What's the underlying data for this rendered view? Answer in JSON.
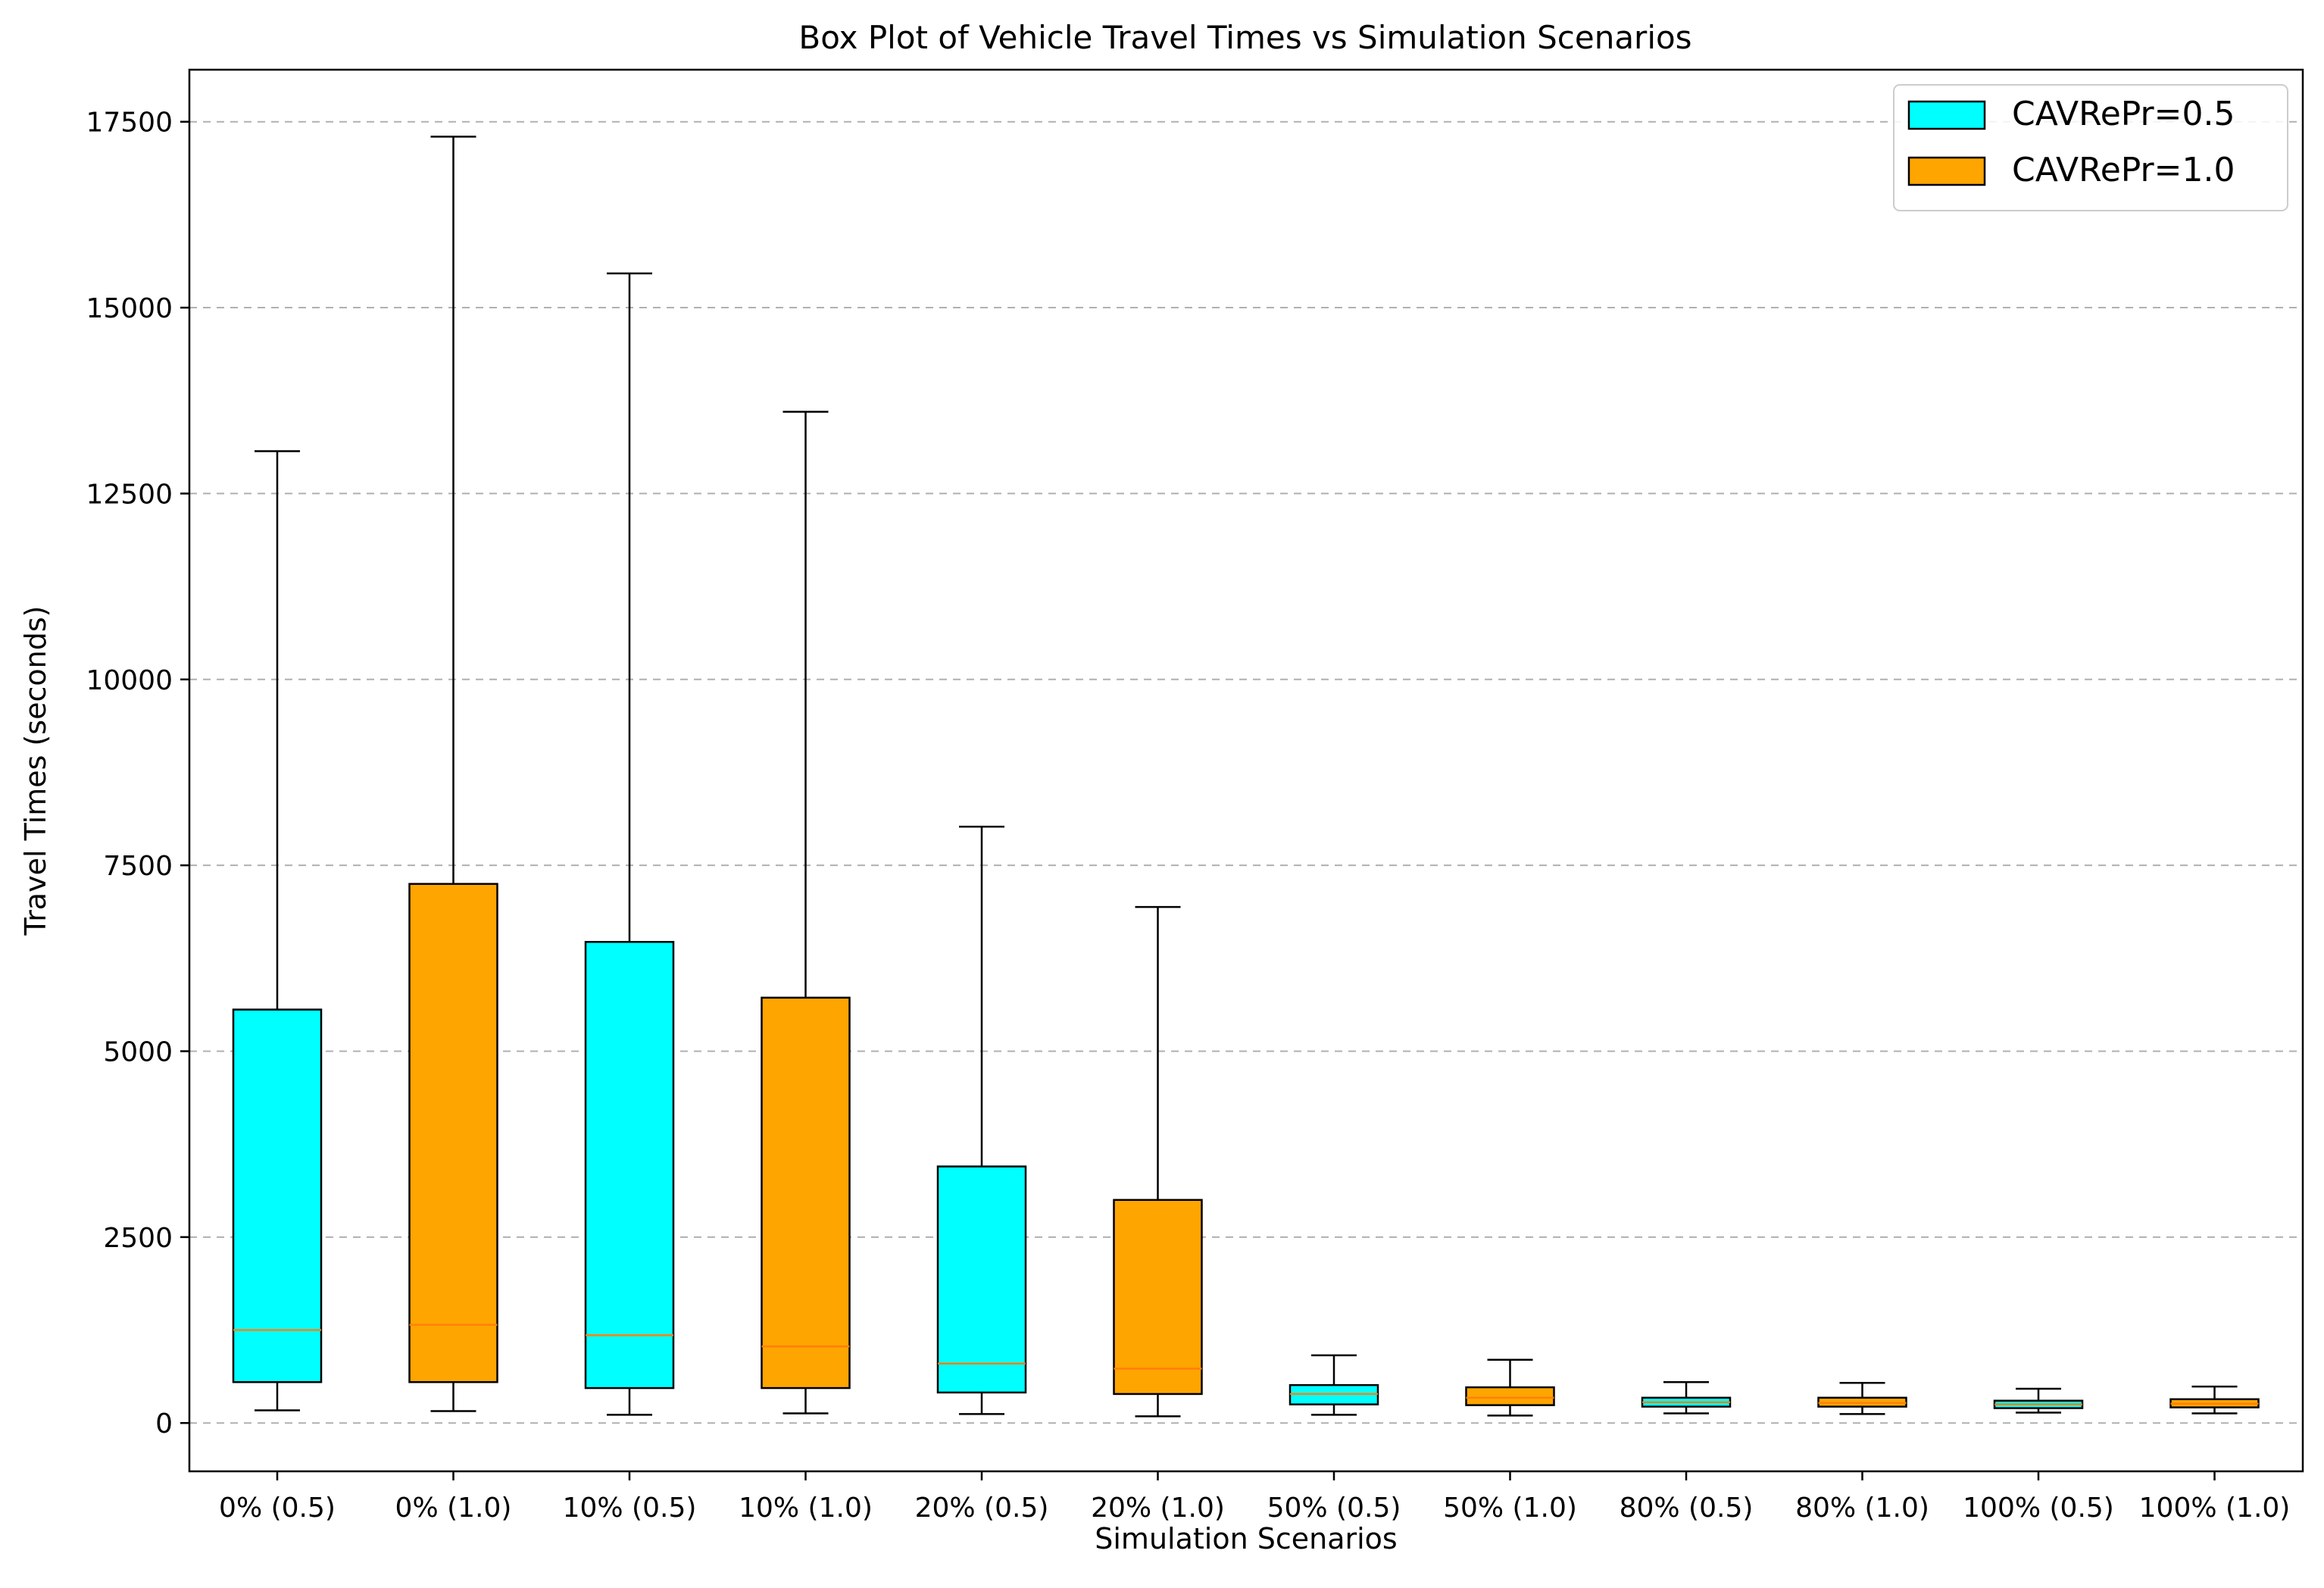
{
  "chart_data": {
    "type": "box",
    "title": "Box Plot of Vehicle Travel Times vs Simulation Scenarios",
    "xlabel": "Simulation Scenarios",
    "ylabel": "Travel Times (seconds)",
    "ylim": [
      -650,
      18200
    ],
    "yticks": [
      0,
      2500,
      5000,
      7500,
      10000,
      12500,
      15000,
      17500
    ],
    "grid": "horizontal dashed",
    "legend_position": "top-right",
    "colors": {
      "CAVRePr=0.5": "#00ffff",
      "CAVRePr=1.0": "#ffa500",
      "median": "#ff7f0e",
      "edge": "#000000"
    },
    "legend": [
      {
        "label": "CAVRePr=0.5",
        "color": "#00ffff"
      },
      {
        "label": "CAVRePr=1.0",
        "color": "#ffa500"
      }
    ],
    "categories": [
      "0% (0.5)",
      "0% (1.0)",
      "10% (0.5)",
      "10% (1.0)",
      "20% (0.5)",
      "20% (1.0)",
      "50% (0.5)",
      "50% (1.0)",
      "80% (0.5)",
      "80% (1.0)",
      "100% (0.5)",
      "100% (1.0)"
    ],
    "boxes": [
      {
        "category": "0% (0.5)",
        "group": "CAVRePr=0.5",
        "whisker_low": 170,
        "q1": 550,
        "median": 1250,
        "q3": 5560,
        "whisker_high": 13070
      },
      {
        "category": "0% (1.0)",
        "group": "CAVRePr=1.0",
        "whisker_low": 160,
        "q1": 550,
        "median": 1320,
        "q3": 7250,
        "whisker_high": 17300
      },
      {
        "category": "10% (0.5)",
        "group": "CAVRePr=0.5",
        "whisker_low": 110,
        "q1": 470,
        "median": 1180,
        "q3": 6470,
        "whisker_high": 15460
      },
      {
        "category": "10% (1.0)",
        "group": "CAVRePr=1.0",
        "whisker_low": 130,
        "q1": 470,
        "median": 1030,
        "q3": 5720,
        "whisker_high": 13600
      },
      {
        "category": "20% (0.5)",
        "group": "CAVRePr=0.5",
        "whisker_low": 120,
        "q1": 410,
        "median": 800,
        "q3": 3450,
        "whisker_high": 8020
      },
      {
        "category": "20% (1.0)",
        "group": "CAVRePr=1.0",
        "whisker_low": 90,
        "q1": 390,
        "median": 730,
        "q3": 3000,
        "whisker_high": 6940
      },
      {
        "category": "50% (0.5)",
        "group": "CAVRePr=0.5",
        "whisker_low": 110,
        "q1": 250,
        "median": 390,
        "q3": 510,
        "whisker_high": 910
      },
      {
        "category": "50% (1.0)",
        "group": "CAVRePr=1.0",
        "whisker_low": 100,
        "q1": 240,
        "median": 340,
        "q3": 480,
        "whisker_high": 850
      },
      {
        "category": "80% (0.5)",
        "group": "CAVRePr=0.5",
        "whisker_low": 130,
        "q1": 220,
        "median": 280,
        "q3": 340,
        "whisker_high": 550
      },
      {
        "category": "80% (1.0)",
        "group": "CAVRePr=1.0",
        "whisker_low": 120,
        "q1": 220,
        "median": 270,
        "q3": 340,
        "whisker_high": 540
      },
      {
        "category": "100% (0.5)",
        "group": "CAVRePr=0.5",
        "whisker_low": 140,
        "q1": 200,
        "median": 250,
        "q3": 300,
        "whisker_high": 460
      },
      {
        "category": "100% (1.0)",
        "group": "CAVRePr=1.0",
        "whisker_low": 130,
        "q1": 210,
        "median": 260,
        "q3": 320,
        "whisker_high": 490
      }
    ]
  }
}
